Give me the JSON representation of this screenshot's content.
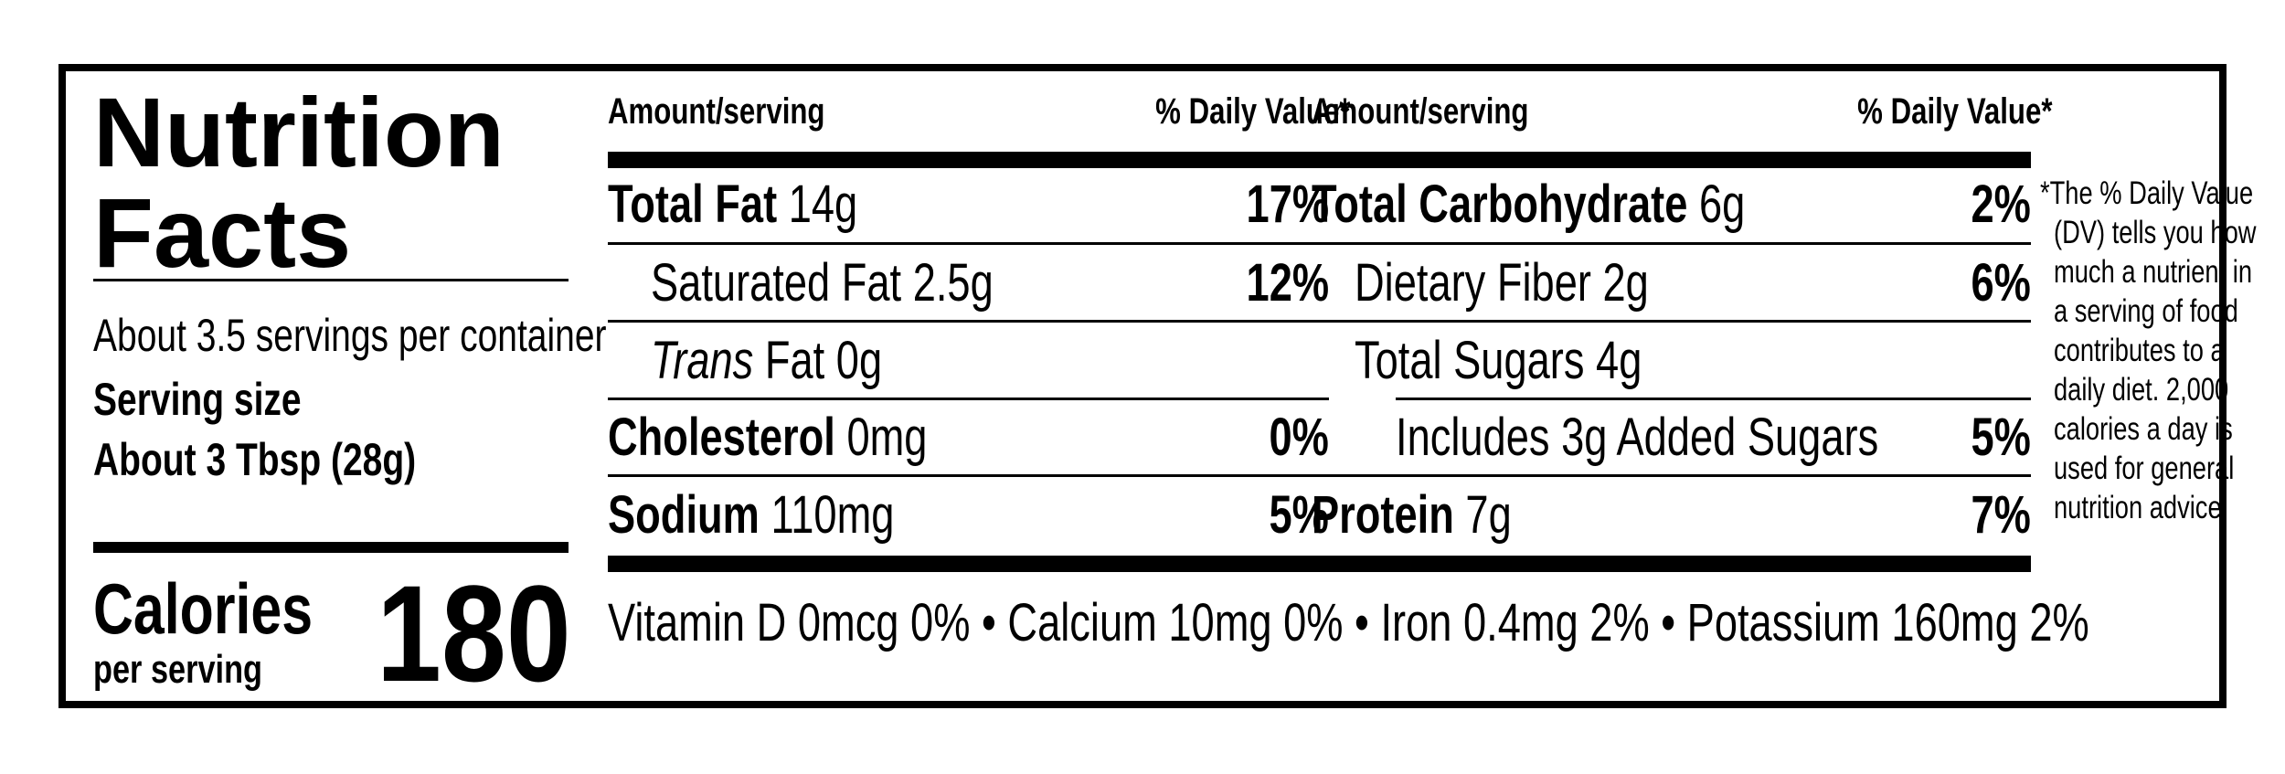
{
  "title_line1": "Nutrition",
  "title_line2": "Facts",
  "servings_per_container": "About 3.5 servings per container",
  "serving_size_label": "Serving size",
  "serving_size_value": "About 3 Tbsp (28g)",
  "calories_label": "Calories",
  "calories_sub": "per serving",
  "calories_value": "180",
  "col_left": {
    "amount_header": "Amount/serving",
    "dv_header": "% Daily Value*",
    "rows": [
      {
        "name": "Total Fat",
        "amount": "14g",
        "dv": "17%"
      },
      {
        "name": "Saturated Fat",
        "amount": "2.5g",
        "dv": "12%"
      },
      {
        "name_italic": "Trans",
        "name": "Fat",
        "amount": "0g",
        "dv": ""
      },
      {
        "name": "Cholesterol",
        "amount": "0mg",
        "dv": "0%"
      },
      {
        "name": "Sodium",
        "amount": "110mg",
        "dv": "5%"
      }
    ]
  },
  "col_right": {
    "amount_header": "Amount/serving",
    "dv_header": "% Daily Value*",
    "rows": [
      {
        "name": "Total Carbohydrate",
        "amount": "6g",
        "dv": "2%"
      },
      {
        "name": "Dietary Fiber",
        "amount": "2g",
        "dv": "6%"
      },
      {
        "name": "Total Sugars",
        "amount": "4g",
        "dv": ""
      },
      {
        "name": "Includes 3g Added Sugars",
        "amount": "",
        "dv": "5%"
      },
      {
        "name": "Protein",
        "amount": "7g",
        "dv": "7%"
      }
    ]
  },
  "vitamins_line": "Vitamin D 0mcg 0% • Calcium 10mg 0% • Iron 0.4mg 2% • Potassium 160mg 2%",
  "footnote": [
    "*The % Daily Value",
    "(DV) tells you how",
    "much a nutrient in",
    "a serving of food",
    "contributes to a",
    "daily diet. 2,000",
    "calories a day is",
    "used for general",
    "nutrition advice."
  ]
}
